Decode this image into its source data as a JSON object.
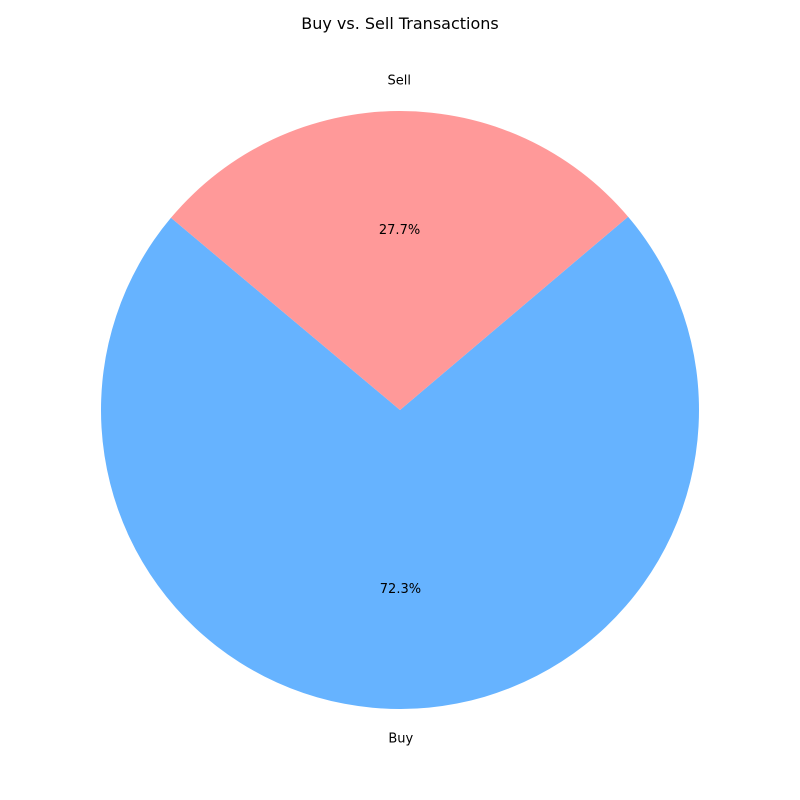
{
  "chart_data": {
    "type": "pie",
    "title": "Buy vs. Sell Transactions",
    "categories": [
      "Buy",
      "Sell"
    ],
    "values": [
      72.3,
      27.7
    ],
    "percent_labels": [
      "72.3%",
      "27.7%"
    ],
    "colors": [
      "#66b3ff",
      "#ff9999"
    ],
    "start_angle_deg": 140,
    "legend": "none"
  }
}
